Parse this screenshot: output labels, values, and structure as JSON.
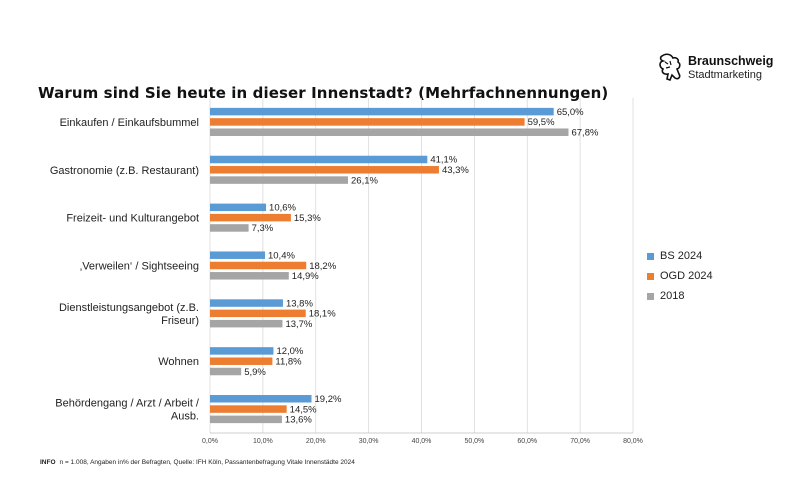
{
  "title": "Warum sind Sie heute in dieser Innenstadt? (Mehrfachnennungen)",
  "brand": {
    "name": "Braunschweig",
    "subtitle": "Stadtmarketing",
    "logo_icon": "lion-icon"
  },
  "footnote": {
    "label": "INFO",
    "text": "n = 1.008, Angaben in% der Befragten, Quelle: IFH Köln, Passantenbefragung Vitale Innenstädte 2024"
  },
  "chart_data": {
    "type": "bar",
    "orientation": "horizontal",
    "categories": [
      [
        "Einkaufen / Einkaufsbummel"
      ],
      [
        "Gastronomie (z.B. Restaurant)"
      ],
      [
        "Freizeit- und Kulturangebot"
      ],
      [
        "‚Verweilen‘ / Sightseeing"
      ],
      [
        "Dienstleistungsangebot (z.B.",
        "Friseur)"
      ],
      [
        "Wohnen"
      ],
      [
        "Behördengang / Arzt / Arbeit /",
        "Ausb."
      ]
    ],
    "series": [
      {
        "name": "BS 2024",
        "color": "#5b9bd5",
        "values": [
          65.0,
          41.1,
          10.6,
          10.4,
          13.8,
          12.0,
          19.2
        ],
        "labels": [
          "65,0%",
          "41,1%",
          "10,6%",
          "10,4%",
          "13,8%",
          "12,0%",
          "19,2%"
        ]
      },
      {
        "name": "OGD 2024",
        "color": "#ed7d31",
        "values": [
          59.5,
          43.3,
          15.3,
          18.2,
          18.1,
          11.8,
          14.5
        ],
        "labels": [
          "59,5%",
          "43,3%",
          "15,3%",
          "18,2%",
          "18,1%",
          "11,8%",
          "14,5%"
        ]
      },
      {
        "name": "2018",
        "color": "#a5a5a5",
        "values": [
          67.8,
          26.1,
          7.3,
          14.9,
          13.7,
          5.9,
          13.6
        ],
        "labels": [
          "67,8%",
          "26,1%",
          "7,3%",
          "14,9%",
          "13,7%",
          "5,9%",
          "13,6%"
        ]
      }
    ],
    "xlim": [
      0,
      80
    ],
    "ticks": [
      0,
      10,
      20,
      30,
      40,
      50,
      60,
      70,
      80
    ],
    "tick_labels": [
      "0,0%",
      "10,0%",
      "20,0%",
      "30,0%",
      "40,0%",
      "50,0%",
      "60,0%",
      "70,0%",
      "80,0%"
    ],
    "grid": true,
    "legend_position": "right"
  }
}
